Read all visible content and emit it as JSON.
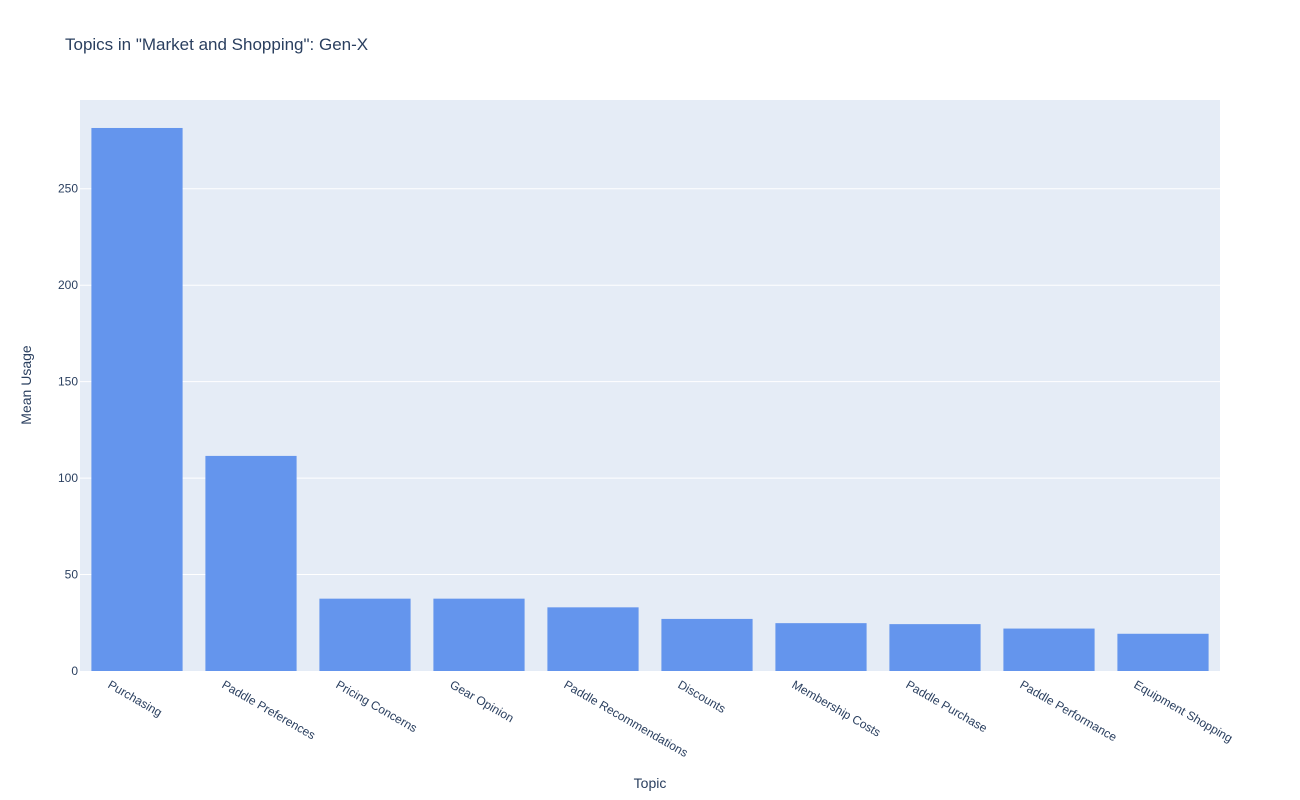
{
  "chart_data": {
    "type": "bar",
    "title": "Topics in \"Market and Shopping\": Gen-X",
    "xlabel": "Topic",
    "ylabel": "Mean Usage",
    "categories": [
      "Purchasing",
      "Paddle Preferences",
      "Pricing Concerns",
      "Gear Opinion",
      "Paddle Recommendations",
      "Discounts",
      "Membership Costs",
      "Paddle Purchase",
      "Paddle Performance",
      "Equipment Shopping"
    ],
    "values": [
      281.5,
      111.5,
      37.5,
      37.5,
      33,
      27,
      24.8,
      24.3,
      22,
      19.3
    ],
    "ylim": [
      0,
      296
    ],
    "yticks": [
      0,
      50,
      100,
      150,
      200,
      250
    ],
    "grid": true,
    "colors": {
      "bar": "#6495ed",
      "plot_bg": "#e5ecf6",
      "grid": "#ffffff",
      "text": "#2a3f5f"
    }
  }
}
